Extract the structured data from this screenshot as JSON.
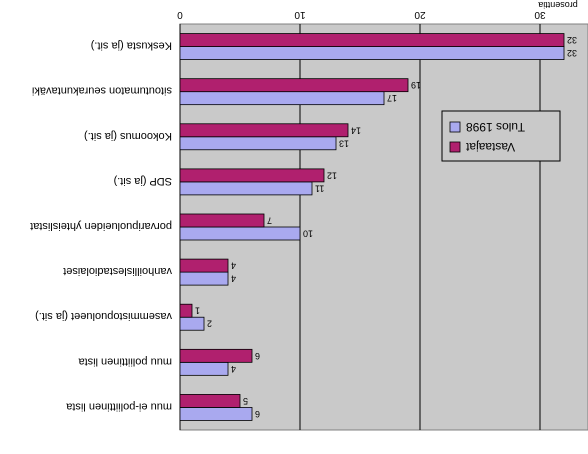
{
  "chart_data": {
    "type": "bar",
    "orientation": "horizontal",
    "xlabel": "prosenttia",
    "xlim": [
      0,
      34
    ],
    "xticks": [
      0,
      10,
      20,
      30
    ],
    "categories": [
      "Keskusta (ja sit.)",
      "sitoutumaton seurakuntaväki",
      "Kokoomus (ja sit.)",
      "SDP (ja sit.)",
      "porvaripuolueiden yhteislistat",
      "vanhoillislestadiolaiset",
      "vasemmistopuolueet (ja sit.)",
      "muu poliittinen lista",
      "muu ei-poliittinen lista"
    ],
    "series": [
      {
        "name": "Tulos 1998",
        "color": "#a9a9ef",
        "values": [
          32,
          17,
          13,
          11,
          10,
          4,
          2,
          4,
          6
        ]
      },
      {
        "name": "Vastaajat",
        "color": "#b0206e",
        "values": [
          32,
          19,
          14,
          12,
          7,
          4,
          1,
          6,
          5
        ]
      }
    ],
    "grid": true,
    "legend_position": "right",
    "plot_background": "#c9c9c9"
  }
}
